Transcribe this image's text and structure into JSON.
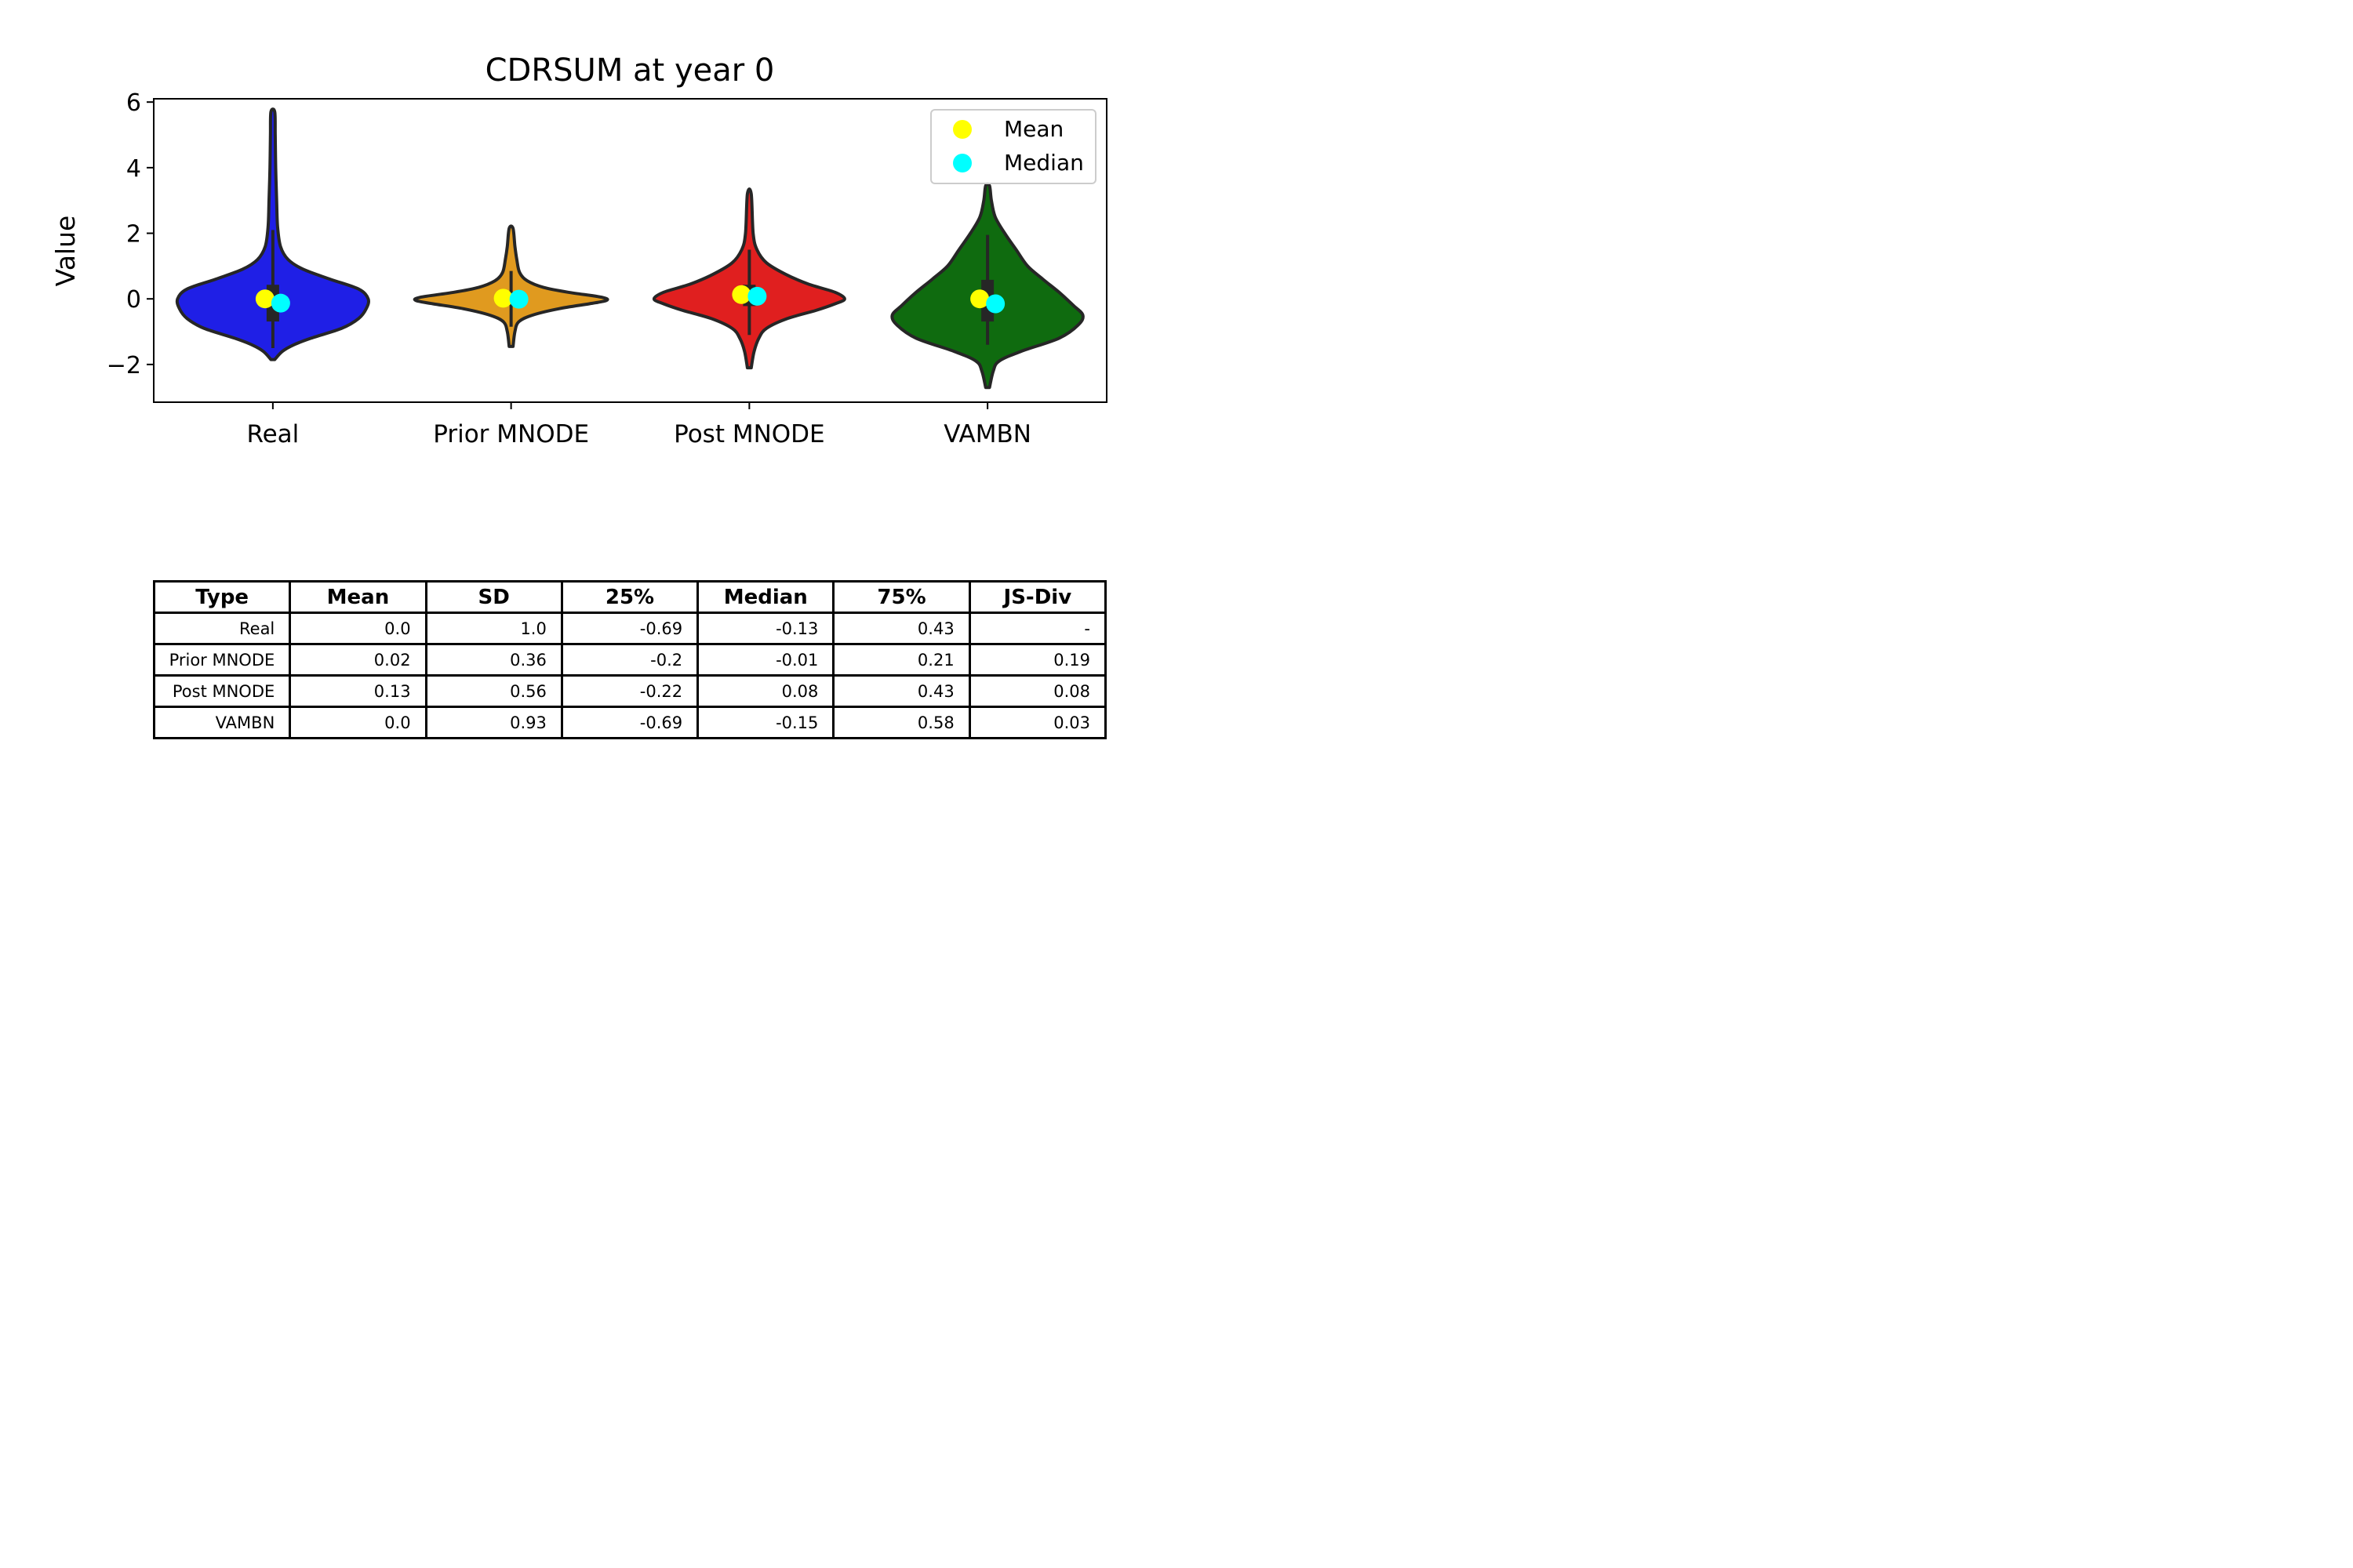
{
  "chart_data": {
    "type": "violin",
    "title": "CDRSUM at year 0",
    "xlabel": "",
    "ylabel": "Value",
    "ylim": [
      -3.15,
      6.1
    ],
    "yticks": [
      -2,
      0,
      2,
      4,
      6
    ],
    "ytick_labels": [
      "−2",
      "0",
      "2",
      "4",
      "6"
    ],
    "categories": [
      "Real",
      "Prior MNODE",
      "Post MNODE",
      "VAMBN"
    ],
    "legend": {
      "placement": "top-right",
      "entries": [
        {
          "label": "Mean",
          "color": "#ffff00"
        },
        {
          "label": "Median",
          "color": "#00ffff"
        }
      ]
    },
    "series": [
      {
        "category": "Real",
        "color": "#1f1fe6",
        "mean": 0.0,
        "median": -0.13,
        "q1": -0.69,
        "q3": 0.43,
        "whisker_low": -1.5,
        "whisker_high": 2.1,
        "density": [
          [
            -1.85,
            0.02
          ],
          [
            -1.6,
            0.1
          ],
          [
            -1.4,
            0.22
          ],
          [
            -1.2,
            0.4
          ],
          [
            -0.9,
            0.72
          ],
          [
            -0.6,
            0.9
          ],
          [
            -0.3,
            0.98
          ],
          [
            0,
            1.0
          ],
          [
            0.3,
            0.9
          ],
          [
            0.6,
            0.6
          ],
          [
            0.9,
            0.32
          ],
          [
            1.2,
            0.16
          ],
          [
            1.6,
            0.08
          ],
          [
            2.2,
            0.05
          ],
          [
            3.0,
            0.04
          ],
          [
            4.0,
            0.03
          ],
          [
            5.0,
            0.025
          ],
          [
            5.7,
            0.02
          ]
        ]
      },
      {
        "category": "Prior MNODE",
        "color": "#e09a1f",
        "mean": 0.02,
        "median": -0.01,
        "q1": -0.2,
        "q3": 0.21,
        "whisker_low": -0.85,
        "whisker_high": 0.85,
        "density": [
          [
            -1.45,
            0.02
          ],
          [
            -1.0,
            0.04
          ],
          [
            -0.7,
            0.08
          ],
          [
            -0.5,
            0.22
          ],
          [
            -0.3,
            0.5
          ],
          [
            -0.15,
            0.82
          ],
          [
            -0.05,
            1.0
          ],
          [
            0.05,
            0.95
          ],
          [
            0.2,
            0.6
          ],
          [
            0.35,
            0.34
          ],
          [
            0.55,
            0.17
          ],
          [
            0.8,
            0.09
          ],
          [
            1.2,
            0.06
          ],
          [
            1.6,
            0.04
          ],
          [
            2.15,
            0.02
          ]
        ]
      },
      {
        "category": "Post MNODE",
        "color": "#e01f1f",
        "mean": 0.13,
        "median": 0.08,
        "q1": -0.22,
        "q3": 0.43,
        "whisker_low": -1.1,
        "whisker_high": 1.5,
        "density": [
          [
            -2.1,
            0.02
          ],
          [
            -1.6,
            0.05
          ],
          [
            -1.2,
            0.1
          ],
          [
            -0.9,
            0.18
          ],
          [
            -0.6,
            0.4
          ],
          [
            -0.35,
            0.7
          ],
          [
            -0.15,
            0.9
          ],
          [
            0.0,
            1.0
          ],
          [
            0.2,
            0.9
          ],
          [
            0.45,
            0.62
          ],
          [
            0.75,
            0.38
          ],
          [
            1.1,
            0.18
          ],
          [
            1.5,
            0.08
          ],
          [
            2.0,
            0.04
          ],
          [
            3.2,
            0.02
          ]
        ]
      },
      {
        "category": "VAMBN",
        "color": "#0f6b0f",
        "mean": 0.0,
        "median": -0.15,
        "q1": -0.69,
        "q3": 0.58,
        "whisker_low": -1.4,
        "whisker_high": 1.95,
        "density": [
          [
            -2.7,
            0.02
          ],
          [
            -2.2,
            0.06
          ],
          [
            -1.9,
            0.12
          ],
          [
            -1.6,
            0.35
          ],
          [
            -1.2,
            0.75
          ],
          [
            -0.8,
            0.95
          ],
          [
            -0.5,
            1.0
          ],
          [
            -0.2,
            0.9
          ],
          [
            0.2,
            0.75
          ],
          [
            0.6,
            0.58
          ],
          [
            1.0,
            0.42
          ],
          [
            1.5,
            0.3
          ],
          [
            2.0,
            0.18
          ],
          [
            2.5,
            0.08
          ],
          [
            3.0,
            0.04
          ],
          [
            3.45,
            0.02
          ]
        ]
      }
    ]
  },
  "table": {
    "headers": [
      "Type",
      "Mean",
      "SD",
      "25%",
      "Median",
      "75%",
      "JS-Div"
    ],
    "rows": [
      [
        "Real",
        "0.0",
        "1.0",
        "-0.69",
        "-0.13",
        "0.43",
        "-"
      ],
      [
        "Prior MNODE",
        "0.02",
        "0.36",
        "-0.2",
        "-0.01",
        "0.21",
        "0.19"
      ],
      [
        "Post MNODE",
        "0.13",
        "0.56",
        "-0.22",
        "0.08",
        "0.43",
        "0.08"
      ],
      [
        "VAMBN",
        "0.0",
        "0.93",
        "-0.69",
        "-0.15",
        "0.58",
        "0.03"
      ]
    ]
  }
}
